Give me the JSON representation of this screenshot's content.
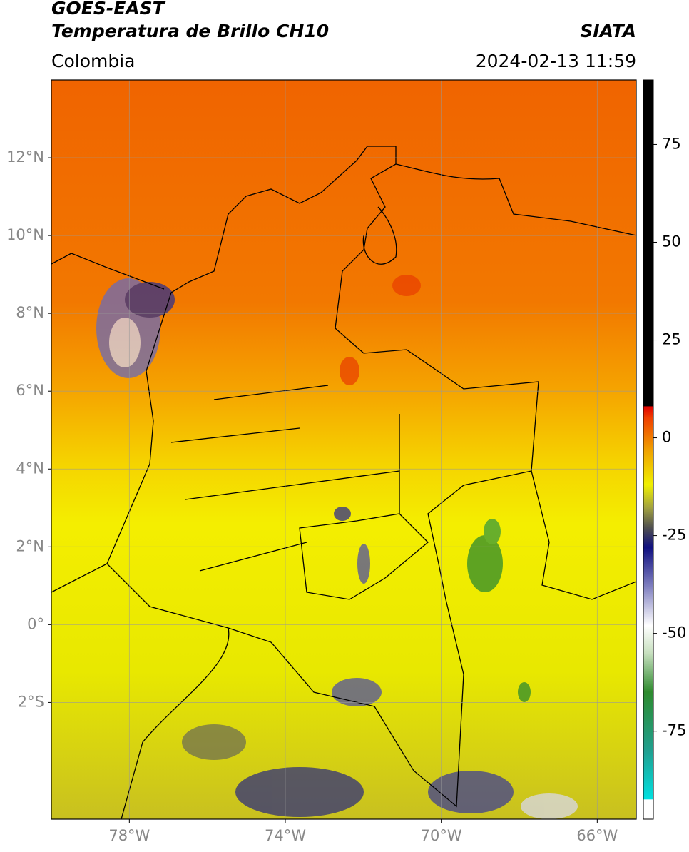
{
  "header": {
    "title": "GOES-EAST",
    "subtitle": "Temperatura de Brillo CH10",
    "source": "SIATA",
    "region": "Colombia",
    "timestamp": "2024-02-13 11:59"
  },
  "map": {
    "lonlim": [
      -80,
      -65
    ],
    "latlim": [
      -5,
      14
    ],
    "grid": true,
    "lon_ticks": [
      {
        "value": -78,
        "label": "78°W"
      },
      {
        "value": -74,
        "label": "74°W"
      },
      {
        "value": -70,
        "label": "70°W"
      },
      {
        "value": -66,
        "label": "66°W"
      }
    ],
    "lat_ticks": [
      {
        "value": 12,
        "label": "12°N"
      },
      {
        "value": 10,
        "label": "10°N"
      },
      {
        "value": 8,
        "label": "8°N"
      },
      {
        "value": 6,
        "label": "6°N"
      },
      {
        "value": 4,
        "label": "4°N"
      },
      {
        "value": 2,
        "label": "2°N"
      },
      {
        "value": 0,
        "label": "0°"
      },
      {
        "value": -2,
        "label": "2°S"
      }
    ]
  },
  "colorbar": {
    "lim": [
      -97.5,
      91.5
    ],
    "ticks": [
      75,
      50,
      25,
      0,
      -25,
      -50,
      -75
    ],
    "colormap": [
      {
        "value": -97.5,
        "color": "#ffffff"
      },
      {
        "value": -92.5,
        "color": "#ffffff"
      },
      {
        "value": -92.4,
        "color": "#00e0e0"
      },
      {
        "value": -80,
        "color": "#20a090"
      },
      {
        "value": -65,
        "color": "#2e8b2e"
      },
      {
        "value": -55,
        "color": "#c8e0c0"
      },
      {
        "value": -48,
        "color": "#ffffff"
      },
      {
        "value": -38,
        "color": "#8080c0"
      },
      {
        "value": -28,
        "color": "#101080"
      },
      {
        "value": -23,
        "color": "#505050"
      },
      {
        "value": -18,
        "color": "#a0a040"
      },
      {
        "value": -12,
        "color": "#f0f000"
      },
      {
        "value": -3,
        "color": "#f0a000"
      },
      {
        "value": 5,
        "color": "#f04000"
      },
      {
        "value": 8,
        "color": "#e00000"
      },
      {
        "value": 8.1,
        "color": "#000000"
      },
      {
        "value": 91.5,
        "color": "#000000"
      }
    ]
  }
}
